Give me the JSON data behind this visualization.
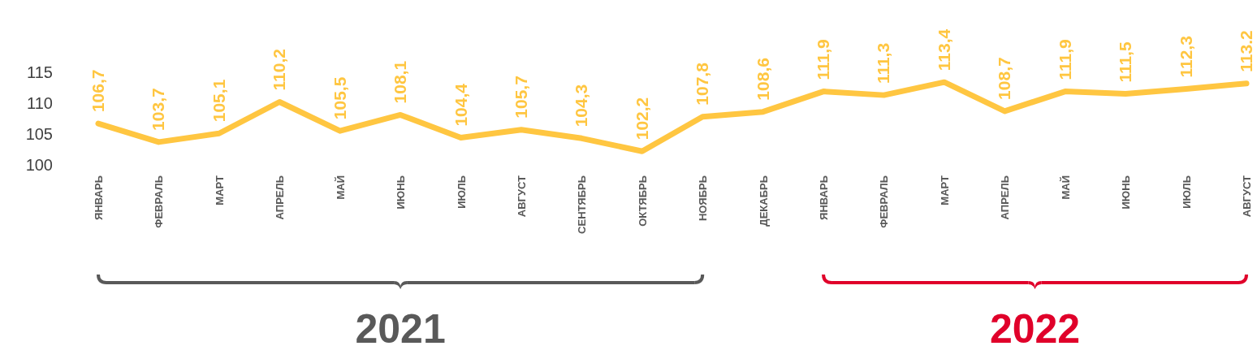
{
  "chart_data": {
    "type": "line",
    "categories": [
      "ЯНВАРЬ",
      "ФЕВРАЛЬ",
      "МАРТ",
      "АПРЕЛЬ",
      "МАЙ",
      "ИЮНЬ",
      "ИЮЛЬ",
      "АВГУСТ",
      "СЕНТЯБРЬ",
      "ОКТЯБРЬ",
      "НОЯБРЬ",
      "ДЕКАБРЬ",
      "ЯНВАРЬ",
      "ФЕВРАЛЬ",
      "МАРТ",
      "АПРЕЛЬ",
      "МАЙ",
      "ИЮНЬ",
      "ИЮЛЬ",
      "АВГУСТ"
    ],
    "series": [
      {
        "color": "#ffc641",
        "values": [
          106.7,
          103.7,
          105.1,
          110.2,
          105.5,
          108.1,
          104.4,
          105.7,
          104.3,
          102.2,
          107.8,
          108.6,
          111.9,
          111.3,
          113.4,
          108.7,
          111.9,
          111.5,
          112.3,
          113.2
        ],
        "value_labels": [
          "106,7",
          "103,7",
          "105,1",
          "110,2",
          "105,5",
          "108,1",
          "104,4",
          "105,7",
          "104,3",
          "102,2",
          "107,8",
          "108,6",
          "111,9",
          "111,3",
          "113,4",
          "108,7",
          "111,9",
          "111,5",
          "112,3",
          "113.2"
        ]
      }
    ],
    "ylim": [
      100,
      115
    ],
    "yticks": [
      100,
      105,
      110,
      115
    ],
    "grid": false,
    "marker": "none",
    "line_style": "solid",
    "annotations": [
      "2021",
      "2022"
    ]
  }
}
